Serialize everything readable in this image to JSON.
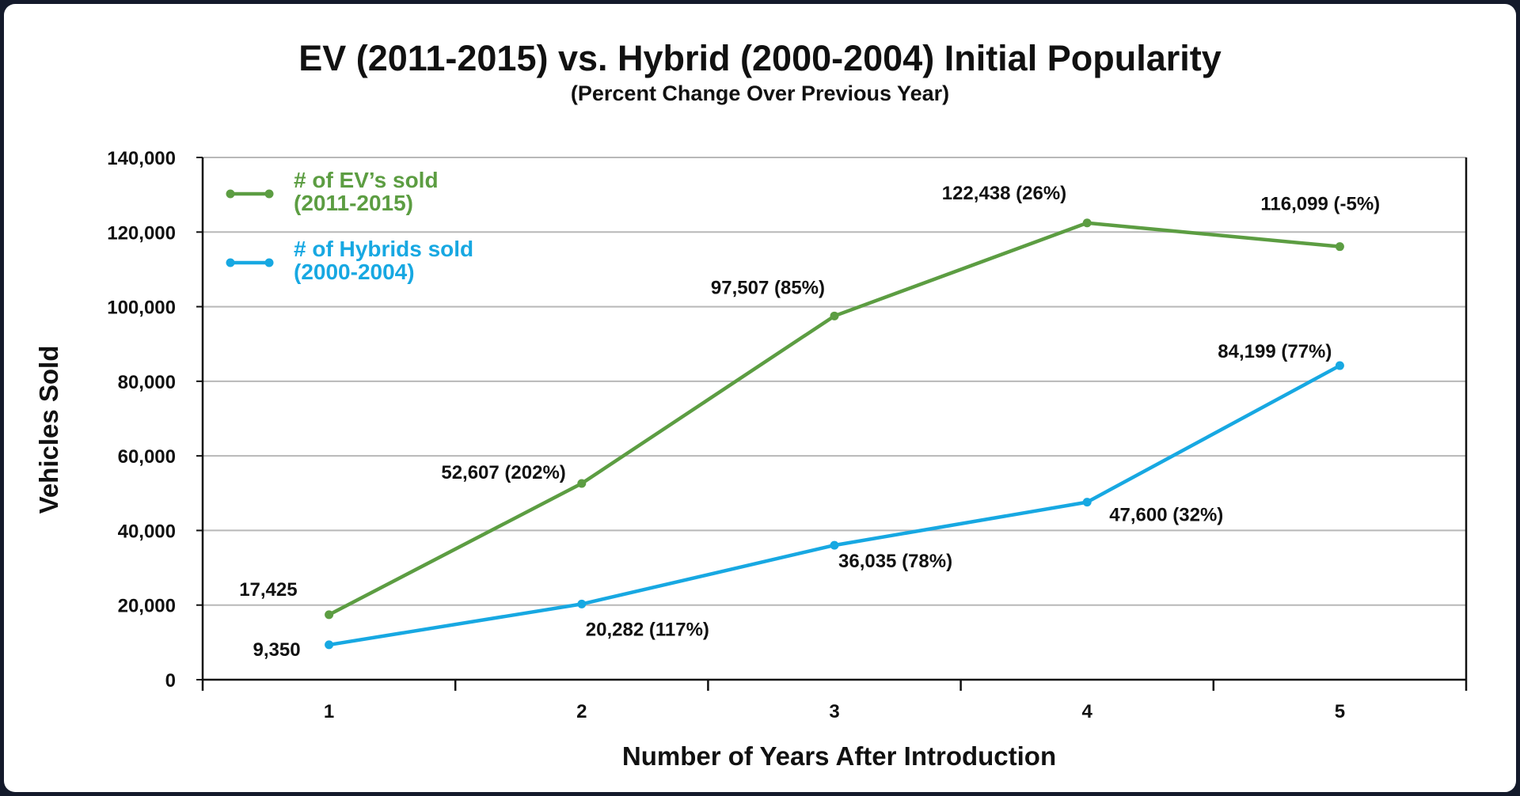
{
  "colors": {
    "ev": "#5c9d42",
    "hybrid": "#17a8e2",
    "grid": "#b8b8b8",
    "axis": "#111111",
    "frame": "#141a2b"
  },
  "chart_data": {
    "type": "line",
    "title": "EV (2011-2015) vs. Hybrid (2000-2004) Initial Popularity",
    "subtitle": "(Percent Change Over Previous Year)",
    "xlabel": "Number of Years After Introduction",
    "ylabel": "Vehicles Sold",
    "ylim": [
      0,
      140000
    ],
    "grid": true,
    "legend_position": "top-left",
    "categories": [
      "1",
      "2",
      "3",
      "4",
      "5"
    ],
    "y_ticks": [
      0,
      20000,
      40000,
      60000,
      80000,
      100000,
      120000,
      140000
    ],
    "y_tick_labels": [
      "0",
      "20,000",
      "40,000",
      "60,000",
      "80,000",
      "100,000",
      "120,000",
      "140,000"
    ],
    "series": [
      {
        "key": "ev",
        "name": "# of EV’s sold",
        "name_line2": "(2011-2015)",
        "values": [
          17425,
          52607,
          97507,
          122438,
          116099
        ],
        "labels": [
          "17,425",
          "52,607 (202%)",
          "97,507 (85%)",
          "122,438 (26%)",
          "116,099 (-5%)"
        ]
      },
      {
        "key": "hybrid",
        "name": "# of Hybrids sold",
        "name_line2": "(2000-2004)",
        "values": [
          9350,
          20282,
          36035,
          47600,
          84199
        ],
        "labels": [
          "9,350",
          "20,282 (117%)",
          "36,035 (78%)",
          "47,600 (32%)",
          "84,199 (77%)"
        ]
      }
    ]
  }
}
